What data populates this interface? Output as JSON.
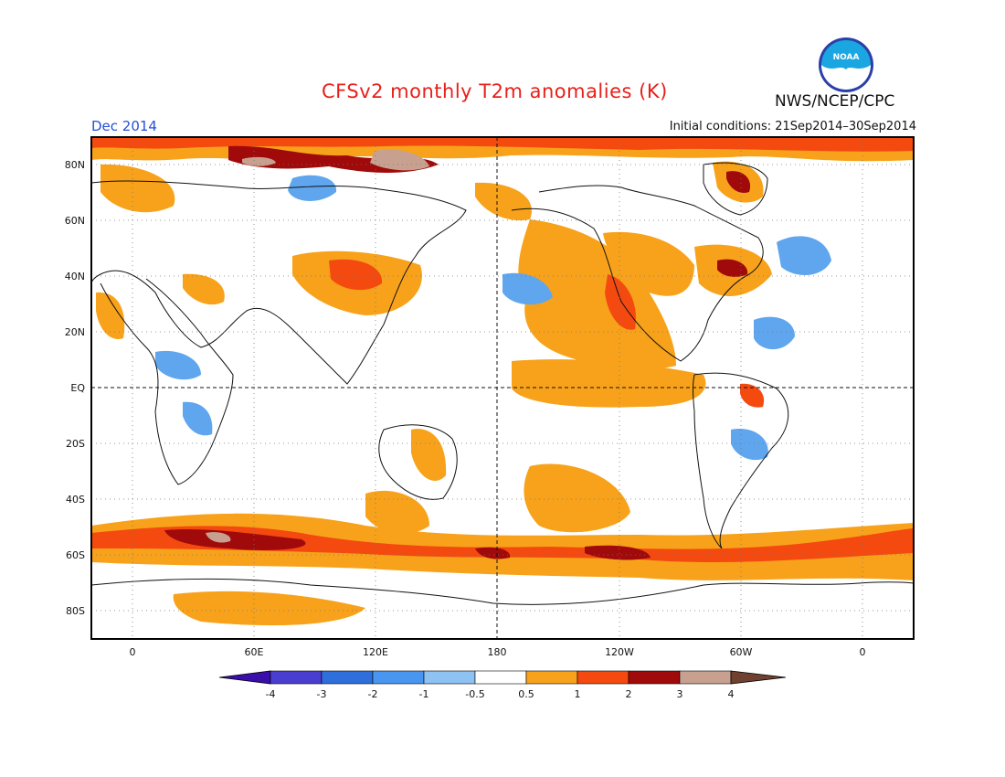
{
  "header": {
    "title": "CFSv2 monthly T2m anomalies (K)",
    "month": "Dec 2014",
    "initial_conditions": "Initial conditions: 21Sep2014–30Sep2014",
    "agency": "NWS/NCEP/CPC",
    "logo_text": "NOAA"
  },
  "map": {
    "lat_labels": [
      "80N",
      "60N",
      "40N",
      "20N",
      "EQ",
      "20S",
      "40S",
      "60S",
      "80S"
    ],
    "lon_labels": [
      "0",
      "60E",
      "120E",
      "180",
      "120W",
      "60W",
      "0"
    ],
    "colors": {
      "strong_warm": "#a00a0a",
      "warm": "#f22a0a",
      "mild_warm": "#f7a21a",
      "cool": "#5fa6ee",
      "extreme_warm": "#c8a090"
    }
  },
  "colorbar": {
    "labels": [
      "-4",
      "-3",
      "-2",
      "-1",
      "-0.5",
      "0.5",
      "1",
      "2",
      "3",
      "4"
    ],
    "colors": [
      "#3a0ea8",
      "#4a3ed0",
      "#2e6fdc",
      "#4996f0",
      "#8dc2f3",
      "#ffffff",
      "#f7a21a",
      "#f44a10",
      "#a00a0a",
      "#c8a090",
      "#704030"
    ]
  }
}
